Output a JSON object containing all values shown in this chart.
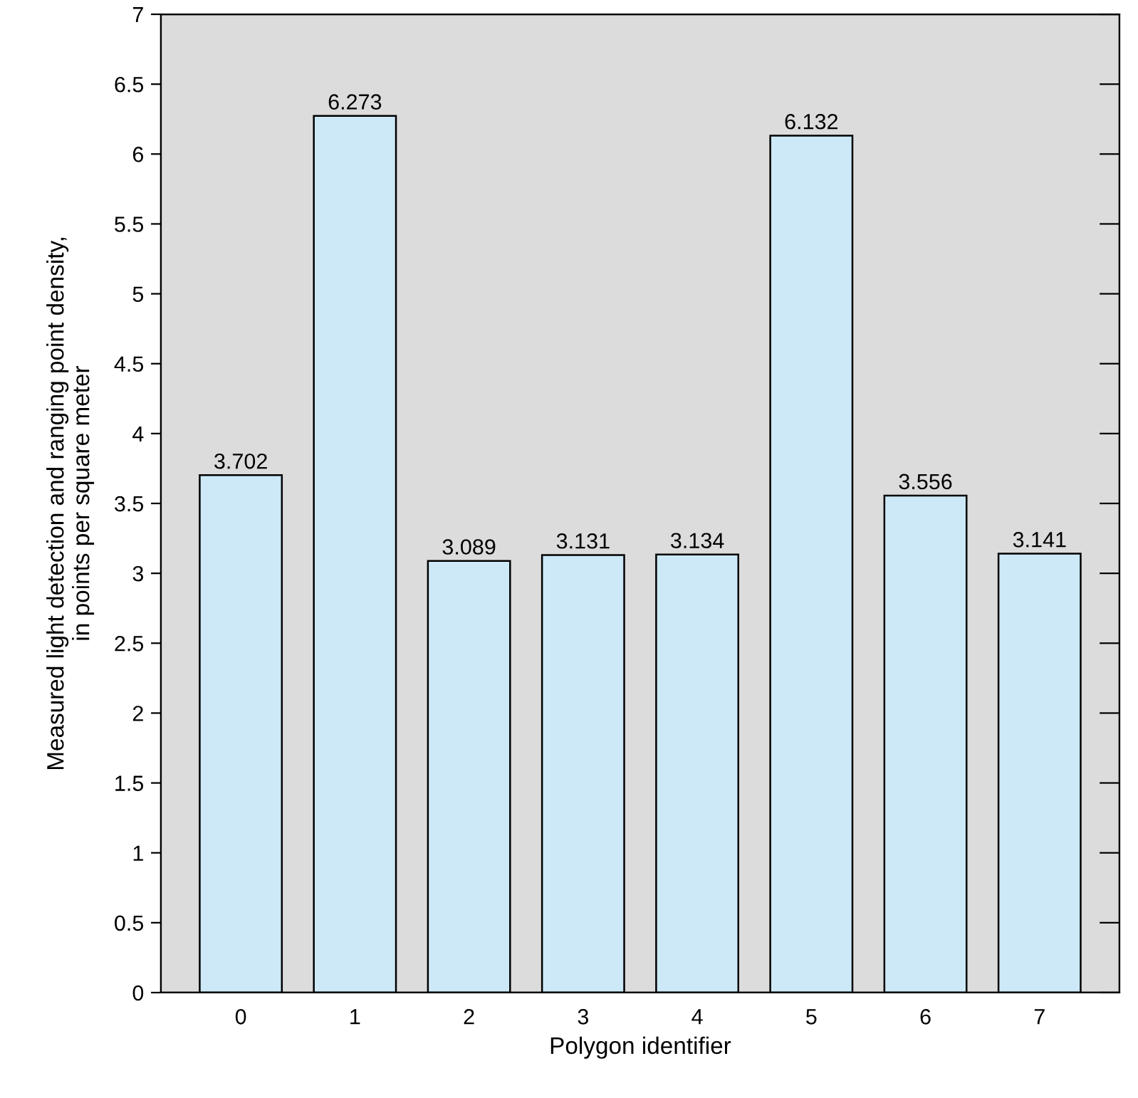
{
  "chart_data": {
    "type": "bar",
    "xlabel": "Polygon identifier",
    "ylabel": "Measured light detection and ranging point density,\nin points per square meter",
    "categories": [
      "0",
      "1",
      "2",
      "3",
      "4",
      "5",
      "6",
      "7"
    ],
    "values": [
      3.702,
      6.273,
      3.089,
      3.131,
      3.134,
      6.132,
      3.556,
      3.141
    ],
    "color": "#cde9f8",
    "ylim": [
      0,
      7
    ],
    "yticks": [
      0,
      0.5,
      1,
      1.5,
      2,
      2.5,
      3,
      3.5,
      4,
      4.5,
      5,
      5.5,
      6,
      6.5,
      7
    ],
    "data_labels": true,
    "grid": false
  }
}
